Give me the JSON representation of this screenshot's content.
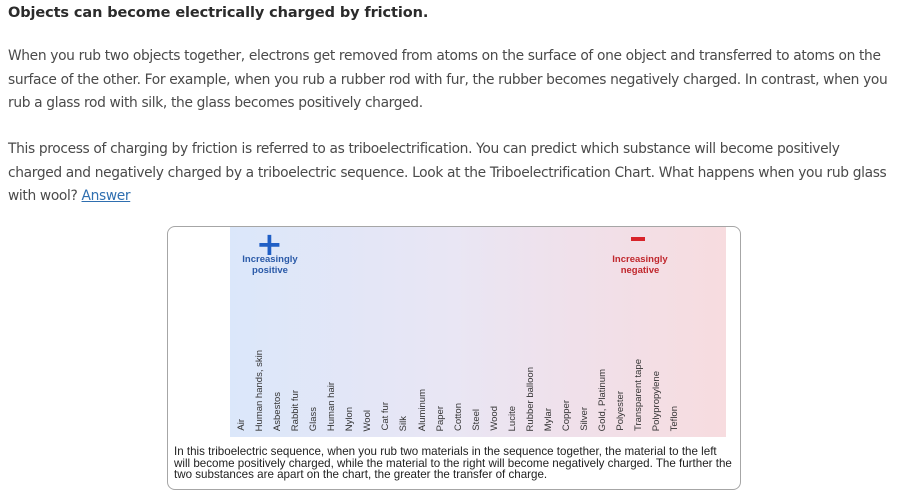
{
  "heading": "Objects can become electrically charged by friction.",
  "paragraph1": "When you rub two objects together, electrons get removed from atoms on the surface of one object and transferred to atoms on the surface of the other. For example, when you rub a rubber rod with fur, the rubber becomes negatively charged. In contrast, when you rub a glass rod with silk, the glass becomes positively charged.",
  "paragraph2_text": "This process of charging by friction is referred to as triboelectrification. You can predict which substance will become positively charged and negatively charged by a triboelectric sequence. Look at the Triboelectrification Chart. What happens when you rub glass with wool? ",
  "answer_link": "Answer",
  "chart": {
    "positive_symbol": "+",
    "positive_label": "Increasingly positive",
    "negative_label": "Increasingly negative",
    "materials": [
      "Air",
      "Human hands, skin",
      "Asbestos",
      "Rabbit fur",
      "Glass",
      "Human hair",
      "Nylon",
      "Wool",
      "Cat fur",
      "Silk",
      "Aluminum",
      "Paper",
      "Cotton",
      "Steel",
      "Wood",
      "Lucite",
      "Rubber balloon",
      "Mylar",
      "Copper",
      "Silver",
      "Gold, Platinum",
      "Polyester",
      "Transparent tape",
      "Polypropylene",
      "Teflon"
    ],
    "caption": "In this triboelectric sequence, when you rub two materials in the sequence together, the material to the left will become positively charged, while the material to the right will become negatively charged. The further the two substances are apart on the chart, the greater the transfer of charge.",
    "colors": {
      "positive": "#1f5fc6",
      "negative": "#d8232a"
    }
  }
}
